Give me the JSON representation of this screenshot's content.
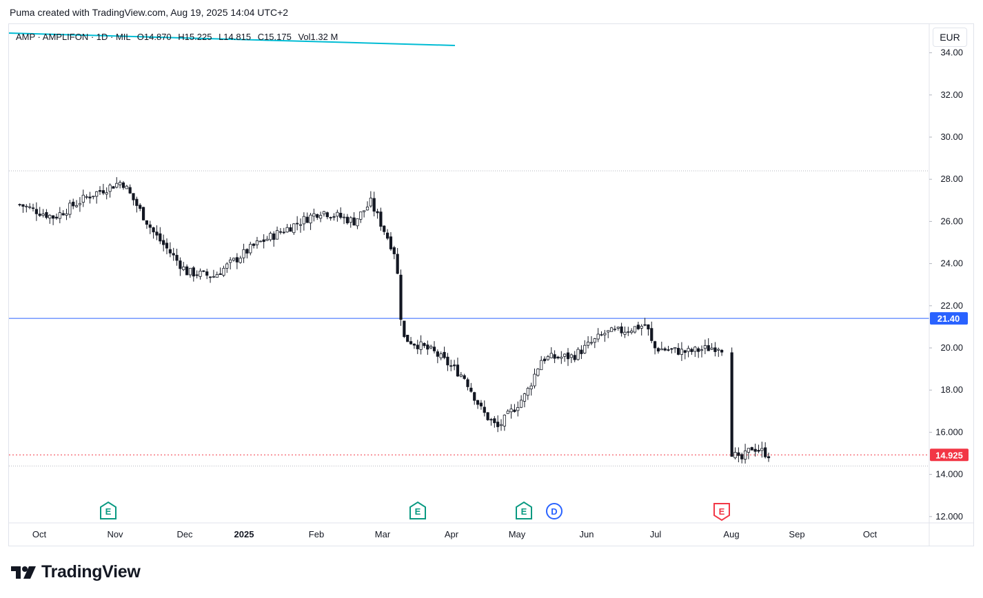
{
  "header": {
    "title": "Puma created with TradingView.com, Aug 19, 2025 14:04 UTC+2"
  },
  "legend": {
    "symbol": "AMP · AMPLIFON · 1D · MIL",
    "open_label": "O",
    "open": "14.870",
    "high_label": "H",
    "high": "15.225",
    "low_label": "L",
    "low": "14.815",
    "close_label": "C",
    "close": "15.175",
    "vol_label": "Vol",
    "vol": "1.32 M"
  },
  "currency": "EUR",
  "footer": {
    "brand": "TradingView"
  },
  "colors": {
    "up": "#089981",
    "down": "#f23645",
    "hline": "#2962ff",
    "trend": "#00bcd4",
    "price": "#f23645",
    "grid": "#e0e3eb"
  },
  "chart_data": {
    "type": "candlestick",
    "y_axis": {
      "ticks": [
        "34.00",
        "32.00",
        "30.00",
        "28.00",
        "26.00",
        "24.00",
        "22.00",
        "20.00",
        "18.00",
        "16.000",
        "14.000",
        "12.000"
      ],
      "range": [
        11.8,
        35.4
      ],
      "side": "right"
    },
    "x_axis": {
      "labels": [
        "Oct",
        "Nov",
        "Dec",
        "2025",
        "Feb",
        "Mar",
        "Apr",
        "May",
        "Jun",
        "Jul",
        "Aug",
        "Sep",
        "Oct"
      ]
    },
    "horizontal_lines": [
      {
        "price": 21.4,
        "label": "21.40",
        "style": "solid",
        "color": "#2962ff"
      },
      {
        "price": 28.4,
        "label": "",
        "style": "dotted",
        "color": "#b2b5be"
      },
      {
        "price": 14.4,
        "label": "",
        "style": "dotted",
        "color": "#b2b5be"
      }
    ],
    "last_price": {
      "price": 14.925,
      "label": "14.925"
    },
    "trendline": {
      "from_price": 33.9,
      "to_price": 33.4
    },
    "events": [
      {
        "type": "E",
        "month": "Nov"
      },
      {
        "type": "E",
        "month": "Mar"
      },
      {
        "type": "E",
        "month": "May"
      },
      {
        "type": "D",
        "month": "May"
      },
      {
        "type": "E",
        "month": "Aug"
      }
    ],
    "series_path": [
      {
        "date": "2024-09-23",
        "close": 26.8
      },
      {
        "date": "2024-10-07",
        "close": 26.2
      },
      {
        "date": "2024-10-21",
        "close": 27.2
      },
      {
        "date": "2024-11-04",
        "close": 27.9
      },
      {
        "date": "2024-11-18",
        "close": 25.4
      },
      {
        "date": "2024-12-02",
        "close": 23.6
      },
      {
        "date": "2024-12-16",
        "close": 23.4
      },
      {
        "date": "2025-01-06",
        "close": 24.9
      },
      {
        "date": "2025-01-20",
        "close": 25.7
      },
      {
        "date": "2025-02-03",
        "close": 26.5
      },
      {
        "date": "2025-02-17",
        "close": 26.0
      },
      {
        "date": "2025-02-24",
        "close": 26.9
      },
      {
        "date": "2025-03-03",
        "close": 25.3
      },
      {
        "date": "2025-03-07",
        "close": 24.4
      },
      {
        "date": "2025-03-10",
        "close": 20.5
      },
      {
        "date": "2025-03-24",
        "close": 19.8
      },
      {
        "date": "2025-04-07",
        "close": 18.6
      },
      {
        "date": "2025-04-15",
        "close": 17.0
      },
      {
        "date": "2025-04-22",
        "close": 16.2
      },
      {
        "date": "2025-05-05",
        "close": 17.8
      },
      {
        "date": "2025-05-12",
        "close": 19.5
      },
      {
        "date": "2025-05-26",
        "close": 19.6
      },
      {
        "date": "2025-06-09",
        "close": 20.7
      },
      {
        "date": "2025-06-16",
        "close": 20.8
      },
      {
        "date": "2025-06-27",
        "close": 21.1
      },
      {
        "date": "2025-06-30",
        "close": 20.0
      },
      {
        "date": "2025-07-14",
        "close": 19.8
      },
      {
        "date": "2025-07-28",
        "close": 20.1
      },
      {
        "date": "2025-08-01",
        "close": 15.1
      },
      {
        "date": "2025-08-05",
        "close": 14.6
      },
      {
        "date": "2025-08-11",
        "close": 15.3
      },
      {
        "date": "2025-08-19",
        "close": 14.925
      }
    ]
  }
}
